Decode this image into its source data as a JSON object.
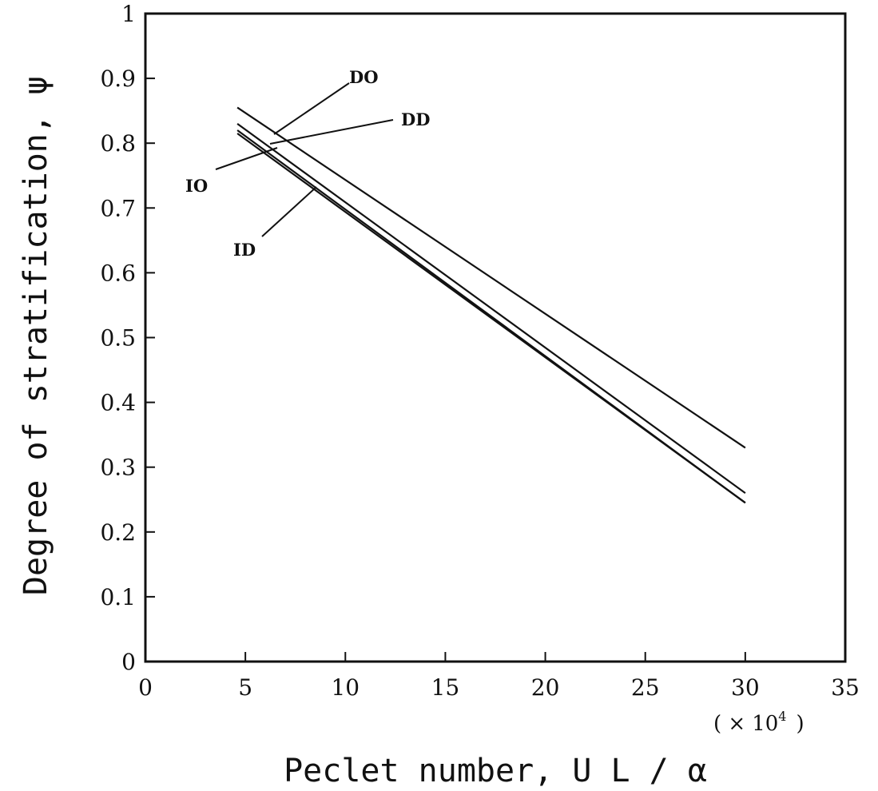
{
  "chart_data": {
    "type": "line",
    "title": "",
    "xlabel": "Peclet number, U L / α",
    "ylabel": "Degree of stratification, ψ",
    "x_multiplier": {
      "open": "( ×",
      "base": "10",
      "exp": "4",
      "close": ")"
    },
    "xlim": [
      0,
      35
    ],
    "ylim": [
      0,
      1
    ],
    "x_ticks": [
      "0",
      "5",
      "10",
      "15",
      "20",
      "25",
      "30",
      "35"
    ],
    "y_ticks": [
      "0",
      "0.1",
      "0.2",
      "0.3",
      "0.4",
      "0.5",
      "0.6",
      "0.7",
      "0.8",
      "0.9",
      "1"
    ],
    "grid": false,
    "legend": "none",
    "series": [
      {
        "name": "DO",
        "x": [
          4.6,
          30
        ],
        "y": [
          0.855,
          0.33
        ]
      },
      {
        "name": "DD",
        "x": [
          4.6,
          30
        ],
        "y": [
          0.83,
          0.26
        ]
      },
      {
        "name": "IO",
        "x": [
          4.6,
          30
        ],
        "y": [
          0.82,
          0.245
        ]
      },
      {
        "name": "ID",
        "x": [
          4.6,
          30
        ],
        "y": [
          0.815,
          0.245
        ]
      }
    ]
  }
}
